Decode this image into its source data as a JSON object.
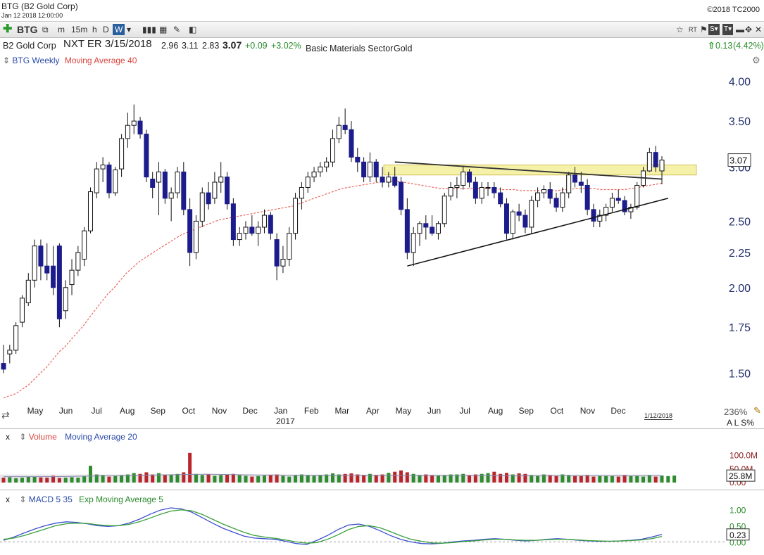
{
  "window": {
    "title": "BTG (B2 Gold Corp)",
    "datetime": "Jan 12 2018 12:00:00",
    "copyright": "©2018 TC2000"
  },
  "toolbar": {
    "symbol": "BTG",
    "timeframes": [
      "m",
      "15m",
      "h",
      "D",
      "W"
    ],
    "selected": "W"
  },
  "quote": {
    "company": "B2 Gold Corp",
    "earnings": "NXT ER 3/15/2018",
    "open": "2.96",
    "high": "3.11",
    "low": "2.83",
    "last": "3.07",
    "change": "+0.09",
    "change_pct": "+3.02%",
    "sector": "Basic Materials Sector",
    "industry": "Gold",
    "right_change": "0.13",
    "right_change_pct": "(4.42%)"
  },
  "price_panel": {
    "legend_series": "BTG Weekly",
    "legend_ma": "Moving Average 40",
    "last_price_tag": "3.07",
    "y_ticks": [
      1.5,
      1.75,
      2.0,
      2.25,
      2.5,
      3.0,
      3.5,
      4.0
    ],
    "y_tick_labels": [
      "1.50",
      "1.75",
      "2.00",
      "2.25",
      "2.50",
      "3.00",
      "3.50",
      "4.00"
    ],
    "x_months": [
      "May",
      "Jun",
      "Jul",
      "Aug",
      "Sep",
      "Oct",
      "Nov",
      "Dec",
      "Jan",
      "Feb",
      "Mar",
      "Apr",
      "May",
      "Jun",
      "Jul",
      "Aug",
      "Sep",
      "Oct",
      "Nov",
      "Dec"
    ],
    "year_label": "2017",
    "date_tag": "1/12/2018",
    "zoom": "236%",
    "scale_flags": "A L S%"
  },
  "volume_panel": {
    "label": "Volume",
    "ma_label": "Moving Average 20",
    "y_ticks": [
      "100.0M",
      "50.0M",
      "0.00"
    ],
    "last_tag": "25.8M"
  },
  "macd_panel": {
    "label": "MACD 5 35",
    "ma_label": "Exp Moving Average 5",
    "y_ticks": [
      "1.00",
      "0.50",
      "0.00"
    ],
    "last_tag": "0.23"
  },
  "colors": {
    "up": "#ffffff",
    "down": "#1c1c8c",
    "ma": "#e8685e",
    "vol_up": "#2e8b2e",
    "vol_down": "#b8262b",
    "macd_blue": "#3c4fd0",
    "macd_green": "#3aa03a",
    "zone": "#f5ef9a"
  },
  "chart_data": {
    "type": "candlestick",
    "timeframe": "weekly",
    "y_scale": "log",
    "ylim": [
      1.35,
      4.2
    ],
    "candles_ohlc": [
      [
        1.55,
        1.65,
        1.5,
        1.52
      ],
      [
        1.6,
        1.65,
        1.55,
        1.62
      ],
      [
        1.62,
        1.78,
        1.6,
        1.76
      ],
      [
        1.78,
        1.95,
        1.75,
        1.93
      ],
      [
        1.9,
        2.1,
        1.88,
        2.05
      ],
      [
        2.05,
        2.35,
        2.0,
        2.3
      ],
      [
        2.3,
        2.35,
        2.05,
        2.15
      ],
      [
        2.15,
        2.32,
        2.05,
        2.1
      ],
      [
        2.15,
        2.3,
        1.95,
        2.0
      ],
      [
        2.3,
        2.32,
        1.75,
        1.8
      ],
      [
        1.85,
        2.05,
        1.8,
        2.0
      ],
      [
        2.02,
        2.2,
        1.95,
        2.12
      ],
      [
        2.12,
        2.3,
        2.08,
        2.25
      ],
      [
        2.2,
        2.45,
        2.15,
        2.42
      ],
      [
        2.42,
        2.8,
        2.4,
        2.76
      ],
      [
        2.75,
        3.05,
        2.7,
        2.98
      ],
      [
        2.98,
        3.1,
        2.85,
        3.02
      ],
      [
        3.02,
        3.05,
        2.7,
        2.75
      ],
      [
        2.75,
        3.0,
        2.72,
        2.97
      ],
      [
        2.98,
        3.35,
        2.9,
        3.3
      ],
      [
        3.3,
        3.6,
        3.2,
        3.45
      ],
      [
        3.45,
        3.7,
        3.35,
        3.5
      ],
      [
        3.5,
        3.55,
        3.3,
        3.35
      ],
      [
        3.35,
        3.4,
        2.85,
        2.9
      ],
      [
        2.88,
        2.95,
        2.7,
        2.8
      ],
      [
        2.85,
        3.05,
        2.55,
        2.95
      ],
      [
        2.95,
        2.98,
        2.65,
        2.7
      ],
      [
        2.7,
        2.8,
        2.5,
        2.75
      ],
      [
        2.75,
        3.0,
        2.7,
        2.95
      ],
      [
        2.95,
        3.05,
        2.55,
        2.6
      ],
      [
        2.6,
        2.7,
        2.15,
        2.25
      ],
      [
        2.25,
        2.55,
        2.2,
        2.5
      ],
      [
        2.5,
        2.8,
        2.45,
        2.75
      ],
      [
        2.75,
        2.85,
        2.6,
        2.65
      ],
      [
        2.7,
        2.95,
        2.65,
        2.85
      ],
      [
        2.85,
        3.05,
        2.75,
        2.9
      ],
      [
        2.9,
        2.95,
        2.6,
        2.65
      ],
      [
        2.65,
        2.7,
        2.3,
        2.35
      ],
      [
        2.35,
        2.45,
        2.3,
        2.4
      ],
      [
        2.4,
        2.5,
        2.35,
        2.45
      ],
      [
        2.45,
        2.55,
        2.38,
        2.4
      ],
      [
        2.4,
        2.5,
        2.3,
        2.45
      ],
      [
        2.45,
        2.6,
        2.4,
        2.55
      ],
      [
        2.55,
        2.58,
        2.35,
        2.4
      ],
      [
        2.35,
        2.4,
        2.05,
        2.15
      ],
      [
        2.15,
        2.3,
        2.1,
        2.2
      ],
      [
        2.2,
        2.45,
        2.15,
        2.4
      ],
      [
        2.4,
        2.75,
        2.35,
        2.7
      ],
      [
        2.7,
        2.85,
        2.6,
        2.8
      ],
      [
        2.8,
        2.95,
        2.75,
        2.9
      ],
      [
        2.9,
        3.0,
        2.85,
        2.95
      ],
      [
        2.95,
        3.05,
        2.9,
        3.0
      ],
      [
        3.0,
        3.1,
        2.95,
        3.05
      ],
      [
        3.05,
        3.4,
        3.0,
        3.3
      ],
      [
        3.3,
        3.55,
        3.25,
        3.45
      ],
      [
        3.45,
        3.65,
        3.35,
        3.4
      ],
      [
        3.4,
        3.5,
        3.05,
        3.1
      ],
      [
        3.1,
        3.2,
        2.95,
        3.05
      ],
      [
        3.05,
        3.1,
        2.85,
        2.9
      ],
      [
        2.9,
        3.15,
        2.85,
        3.05
      ],
      [
        3.05,
        3.08,
        2.85,
        2.9
      ],
      [
        2.9,
        3.0,
        2.8,
        2.85
      ],
      [
        2.85,
        2.95,
        2.8,
        2.9
      ],
      [
        2.9,
        3.0,
        2.8,
        2.82
      ],
      [
        2.85,
        2.9,
        2.55,
        2.6
      ],
      [
        2.6,
        2.7,
        2.2,
        2.25
      ],
      [
        2.25,
        2.45,
        2.15,
        2.4
      ],
      [
        2.4,
        2.5,
        2.3,
        2.48
      ],
      [
        2.48,
        2.55,
        2.35,
        2.45
      ],
      [
        2.45,
        2.55,
        2.38,
        2.4
      ],
      [
        2.4,
        2.5,
        2.35,
        2.48
      ],
      [
        2.48,
        2.75,
        2.45,
        2.72
      ],
      [
        2.72,
        2.85,
        2.68,
        2.8
      ],
      [
        2.8,
        2.9,
        2.7,
        2.82
      ],
      [
        2.82,
        3.0,
        2.78,
        2.95
      ],
      [
        2.95,
        2.98,
        2.8,
        2.85
      ],
      [
        2.85,
        2.9,
        2.65,
        2.7
      ],
      [
        2.7,
        2.85,
        2.65,
        2.8
      ],
      [
        2.8,
        2.85,
        2.72,
        2.8
      ],
      [
        2.8,
        2.85,
        2.7,
        2.75
      ],
      [
        2.75,
        2.8,
        2.62,
        2.65
      ],
      [
        2.65,
        2.7,
        2.35,
        2.4
      ],
      [
        2.4,
        2.6,
        2.35,
        2.58
      ],
      [
        2.58,
        2.65,
        2.5,
        2.55
      ],
      [
        2.55,
        2.6,
        2.4,
        2.45
      ],
      [
        2.45,
        2.72,
        2.4,
        2.68
      ],
      [
        2.68,
        2.8,
        2.62,
        2.75
      ],
      [
        2.75,
        2.82,
        2.7,
        2.78
      ],
      [
        2.78,
        2.85,
        2.65,
        2.7
      ],
      [
        2.7,
        2.75,
        2.58,
        2.62
      ],
      [
        2.62,
        2.8,
        2.58,
        2.75
      ],
      [
        2.75,
        2.95,
        2.7,
        2.92
      ],
      [
        2.92,
        3.0,
        2.8,
        2.85
      ],
      [
        2.85,
        2.95,
        2.75,
        2.82
      ],
      [
        2.82,
        2.88,
        2.55,
        2.6
      ],
      [
        2.6,
        2.65,
        2.45,
        2.5
      ],
      [
        2.5,
        2.6,
        2.45,
        2.55
      ],
      [
        2.55,
        2.65,
        2.5,
        2.62
      ],
      [
        2.62,
        2.75,
        2.58,
        2.7
      ],
      [
        2.7,
        2.78,
        2.65,
        2.68
      ],
      [
        2.68,
        2.72,
        2.55,
        2.58
      ],
      [
        2.58,
        2.65,
        2.52,
        2.62
      ],
      [
        2.62,
        2.85,
        2.6,
        2.82
      ],
      [
        2.82,
        3.0,
        2.8,
        2.96
      ],
      [
        2.96,
        3.2,
        2.95,
        3.15
      ],
      [
        3.15,
        3.22,
        2.95,
        3.0
      ],
      [
        2.96,
        3.11,
        2.83,
        3.07
      ]
    ],
    "moving_average_40": [
      1.38,
      1.39,
      1.4,
      1.42,
      1.44,
      1.47,
      1.5,
      1.53,
      1.57,
      1.61,
      1.64,
      1.68,
      1.72,
      1.76,
      1.81,
      1.86,
      1.91,
      1.96,
      2.0,
      2.05,
      2.1,
      2.14,
      2.18,
      2.21,
      2.24,
      2.27,
      2.3,
      2.33,
      2.36,
      2.39,
      2.41,
      2.43,
      2.45,
      2.47,
      2.49,
      2.51,
      2.52,
      2.53,
      2.54,
      2.55,
      2.56,
      2.57,
      2.58,
      2.59,
      2.6,
      2.61,
      2.62,
      2.63,
      2.65,
      2.67,
      2.69,
      2.71,
      2.73,
      2.75,
      2.77,
      2.79,
      2.8,
      2.81,
      2.82,
      2.83,
      2.84,
      2.85,
      2.86,
      2.86,
      2.86,
      2.85,
      2.84,
      2.83,
      2.82,
      2.81,
      2.8,
      2.79,
      2.79,
      2.79,
      2.79,
      2.79,
      2.79,
      2.79,
      2.79,
      2.79,
      2.79,
      2.78,
      2.78,
      2.78,
      2.77,
      2.77,
      2.77,
      2.77,
      2.77,
      2.77,
      2.77,
      2.78,
      2.78,
      2.79,
      2.79,
      2.79,
      2.79,
      2.78,
      2.78,
      2.78,
      2.78,
      2.78,
      2.79,
      2.8,
      2.81,
      2.82,
      2.83,
      2.84
    ],
    "volume_millions": [
      18,
      20,
      16,
      18,
      22,
      21,
      19,
      18,
      25,
      17,
      18,
      20,
      18,
      24,
      62,
      30,
      28,
      22,
      24,
      28,
      30,
      35,
      32,
      38,
      30,
      35,
      28,
      30,
      32,
      38,
      110,
      32,
      28,
      30,
      25,
      28,
      30,
      32,
      28,
      25,
      22,
      24,
      26,
      28,
      30,
      25,
      22,
      28,
      30,
      26,
      25,
      28,
      30,
      34,
      30,
      32,
      34,
      30,
      28,
      32,
      28,
      30,
      36,
      40,
      45,
      38,
      32,
      28,
      30,
      28,
      25,
      28,
      30,
      30,
      32,
      28,
      30,
      32,
      35,
      40,
      32,
      36,
      30,
      34,
      32,
      28,
      25,
      30,
      28,
      26,
      30,
      28,
      26,
      24,
      28,
      22,
      25,
      26,
      24,
      22,
      28,
      24,
      26,
      22,
      28,
      22,
      26,
      24,
      25.8
    ],
    "volume_ma_20": [
      22,
      22,
      22,
      22,
      23,
      24,
      25,
      26,
      27,
      28,
      29,
      30,
      31,
      30,
      29,
      28,
      28,
      27,
      27,
      27,
      27,
      27,
      27,
      27,
      27,
      26,
      26,
      26,
      26,
      26,
      25,
      25,
      25,
      25,
      25,
      25,
      25,
      25,
      25,
      25
    ],
    "macd": [
      0.05,
      0.15,
      0.28,
      0.4,
      0.5,
      0.58,
      0.62,
      0.6,
      0.56,
      0.5,
      0.48,
      0.5,
      0.58,
      0.7,
      0.85,
      0.98,
      1.05,
      1.02,
      0.92,
      0.75,
      0.58,
      0.42,
      0.3,
      0.18,
      0.12,
      0.1,
      0.08,
      0.02,
      -0.05,
      -0.08,
      0.05,
      0.2,
      0.38,
      0.52,
      0.55,
      0.48,
      0.35,
      0.2,
      0.08,
      0.0,
      -0.05,
      -0.06,
      -0.04,
      0.0,
      0.03,
      0.05,
      0.08,
      0.1,
      0.08,
      0.05,
      0.03,
      0.05,
      0.08,
      0.1,
      0.08,
      0.05,
      0.03,
      0.02,
      0.02,
      0.03,
      0.05,
      0.08,
      0.15,
      0.23
    ],
    "macd_ema_5": [
      0.08,
      0.12,
      0.2,
      0.3,
      0.4,
      0.5,
      0.56,
      0.58,
      0.57,
      0.53,
      0.5,
      0.5,
      0.54,
      0.62,
      0.73,
      0.85,
      0.95,
      0.99,
      0.96,
      0.85,
      0.7,
      0.55,
      0.42,
      0.3,
      0.2,
      0.15,
      0.11,
      0.06,
      0.0,
      -0.04,
      -0.02,
      0.08,
      0.22,
      0.38,
      0.48,
      0.5,
      0.44,
      0.32,
      0.19,
      0.08,
      0.02,
      -0.03,
      -0.04,
      -0.02,
      0.01,
      0.03,
      0.06,
      0.08,
      0.08,
      0.06,
      0.05,
      0.05,
      0.07,
      0.08,
      0.08,
      0.06,
      0.04,
      0.03,
      0.02,
      0.03,
      0.04,
      0.06,
      0.1,
      0.17
    ],
    "annotations": {
      "resistance_zone": [
        2.92,
        3.02
      ],
      "upper_trendline_start": [
        63,
        3.05
      ],
      "upper_trendline_end": [
        106,
        2.88
      ],
      "lower_trendline_start": [
        65,
        2.15
      ],
      "lower_trendline_end": [
        107,
        2.7
      ]
    }
  }
}
